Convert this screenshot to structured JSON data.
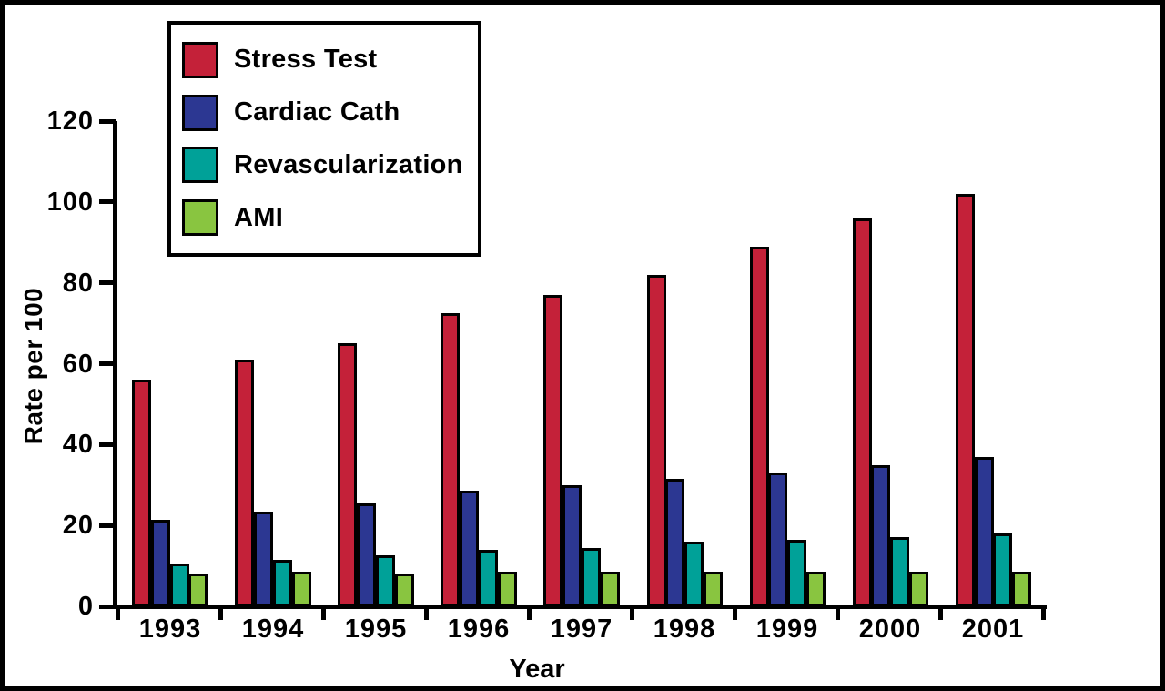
{
  "chart_data": {
    "type": "bar",
    "title": "",
    "xlabel": "Year",
    "ylabel": "Rate per 100",
    "categories": [
      "1993",
      "1994",
      "1995",
      "1996",
      "1997",
      "1998",
      "1999",
      "2000",
      "2001"
    ],
    "y_ticks": [
      0,
      20,
      40,
      60,
      80,
      100,
      120
    ],
    "ylim": [
      0,
      120
    ],
    "grid": false,
    "legend_position": "top-left",
    "series": [
      {
        "name": "Stress Test",
        "color": "#C42139",
        "values": [
          56,
          61,
          65,
          72.5,
          77,
          82,
          89,
          96,
          102
        ]
      },
      {
        "name": "Cardiac Cath",
        "color": "#2C3792",
        "values": [
          21.5,
          23.5,
          25.5,
          28.5,
          30,
          31.5,
          33,
          35,
          37
        ]
      },
      {
        "name": "Revascularization",
        "color": "#00A198",
        "values": [
          10.5,
          11.5,
          12.5,
          14,
          14.5,
          16,
          16.5,
          17,
          18
        ]
      },
      {
        "name": "AMI",
        "color": "#89C540",
        "values": [
          8,
          8.5,
          8,
          8.5,
          8.5,
          8.5,
          8.5,
          8.5,
          8.5
        ]
      }
    ]
  }
}
